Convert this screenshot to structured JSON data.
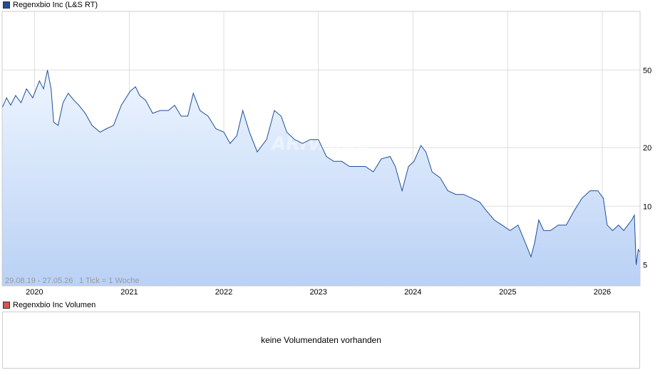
{
  "price_legend": {
    "label": "Regenxbio Inc (L&S RT)",
    "color": "#1f4e9a"
  },
  "volume_legend": {
    "label": "Regenxbio Inc Volumen",
    "color": "#d9534f"
  },
  "range_text": "29.08.19 - 27.05.26",
  "tick_text": "1 Tick = 1 Woche",
  "watermark": "ARIVA.DE",
  "volume_message": "keine Volumendaten vorhanden",
  "chart_data": {
    "type": "area",
    "title": "",
    "yscale": "log",
    "ylim": [
      3.9,
      100
    ],
    "y_ticks": [
      5,
      10,
      20,
      50
    ],
    "x_ticks": [
      "2020",
      "2021",
      "2022",
      "2023",
      "2024",
      "2025",
      "2026"
    ],
    "xlim": [
      "2019-08-29",
      "2026-05-27"
    ],
    "grid": true,
    "series": [
      {
        "name": "Regenxbio Inc (L&S RT)",
        "color": "#1f4e9a",
        "points": [
          [
            "2019-08-29",
            32
          ],
          [
            "2019-09-15",
            36
          ],
          [
            "2019-10-01",
            33
          ],
          [
            "2019-10-20",
            37
          ],
          [
            "2019-11-10",
            34
          ],
          [
            "2019-12-01",
            40
          ],
          [
            "2019-12-25",
            36
          ],
          [
            "2020-01-20",
            44
          ],
          [
            "2020-02-05",
            40
          ],
          [
            "2020-02-20",
            50
          ],
          [
            "2020-03-05",
            40
          ],
          [
            "2020-03-15",
            27
          ],
          [
            "2020-04-01",
            26
          ],
          [
            "2020-04-20",
            34
          ],
          [
            "2020-05-10",
            38
          ],
          [
            "2020-06-01",
            35
          ],
          [
            "2020-06-20",
            33
          ],
          [
            "2020-07-15",
            30
          ],
          [
            "2020-08-10",
            26
          ],
          [
            "2020-09-10",
            24
          ],
          [
            "2020-10-05",
            25
          ],
          [
            "2020-11-01",
            26
          ],
          [
            "2020-12-01",
            33
          ],
          [
            "2021-01-05",
            39
          ],
          [
            "2021-01-25",
            41
          ],
          [
            "2021-02-10",
            37
          ],
          [
            "2021-03-05",
            35
          ],
          [
            "2021-04-01",
            30
          ],
          [
            "2021-05-01",
            31
          ],
          [
            "2021-06-01",
            31
          ],
          [
            "2021-06-25",
            33
          ],
          [
            "2021-07-20",
            29
          ],
          [
            "2021-08-15",
            29
          ],
          [
            "2021-09-05",
            38
          ],
          [
            "2021-10-01",
            31
          ],
          [
            "2021-11-01",
            29
          ],
          [
            "2021-12-01",
            25
          ],
          [
            "2022-01-01",
            24
          ],
          [
            "2022-01-25",
            21
          ],
          [
            "2022-02-20",
            23
          ],
          [
            "2022-03-15",
            31
          ],
          [
            "2022-04-10",
            24
          ],
          [
            "2022-05-10",
            19
          ],
          [
            "2022-06-15",
            22
          ],
          [
            "2022-07-15",
            31
          ],
          [
            "2022-08-10",
            29
          ],
          [
            "2022-09-01",
            24
          ],
          [
            "2022-10-01",
            22
          ],
          [
            "2022-11-01",
            21
          ],
          [
            "2022-12-01",
            22
          ],
          [
            "2023-01-01",
            22
          ],
          [
            "2023-02-01",
            18
          ],
          [
            "2023-03-01",
            17
          ],
          [
            "2023-04-01",
            17
          ],
          [
            "2023-05-01",
            16
          ],
          [
            "2023-06-01",
            16
          ],
          [
            "2023-07-01",
            16
          ],
          [
            "2023-08-01",
            15
          ],
          [
            "2023-09-01",
            17.5
          ],
          [
            "2023-10-05",
            18
          ],
          [
            "2023-10-25",
            16
          ],
          [
            "2023-11-20",
            12
          ],
          [
            "2023-12-15",
            16
          ],
          [
            "2024-01-05",
            17
          ],
          [
            "2024-02-01",
            20.5
          ],
          [
            "2024-02-20",
            19
          ],
          [
            "2024-03-15",
            15
          ],
          [
            "2024-04-15",
            14
          ],
          [
            "2024-05-15",
            12
          ],
          [
            "2024-06-15",
            11.5
          ],
          [
            "2024-07-15",
            11.5
          ],
          [
            "2024-08-15",
            11
          ],
          [
            "2024-09-15",
            10.5
          ],
          [
            "2024-10-10",
            9.5
          ],
          [
            "2024-11-10",
            8.5
          ],
          [
            "2024-12-10",
            8
          ],
          [
            "2025-01-10",
            7.5
          ],
          [
            "2025-02-10",
            8
          ],
          [
            "2025-03-10",
            6.5
          ],
          [
            "2025-04-01",
            5.5
          ],
          [
            "2025-04-15",
            6.5
          ],
          [
            "2025-05-01",
            8.5
          ],
          [
            "2025-05-20",
            7.5
          ],
          [
            "2025-06-15",
            7.5
          ],
          [
            "2025-07-15",
            8
          ],
          [
            "2025-08-15",
            8
          ],
          [
            "2025-09-15",
            9.5
          ],
          [
            "2025-10-15",
            11
          ],
          [
            "2025-11-15",
            12
          ],
          [
            "2025-12-15",
            12
          ],
          [
            "2026-01-05",
            11
          ],
          [
            "2026-01-20",
            8
          ],
          [
            "2026-02-10",
            7.5
          ],
          [
            "2026-03-05",
            8
          ],
          [
            "2026-03-25",
            7.5
          ],
          [
            "2026-04-10",
            8
          ],
          [
            "2026-04-25",
            8.5
          ],
          [
            "2026-05-05",
            9
          ],
          [
            "2026-05-12",
            5
          ],
          [
            "2026-05-20",
            6
          ],
          [
            "2026-05-27",
            5.8
          ]
        ]
      }
    ]
  }
}
